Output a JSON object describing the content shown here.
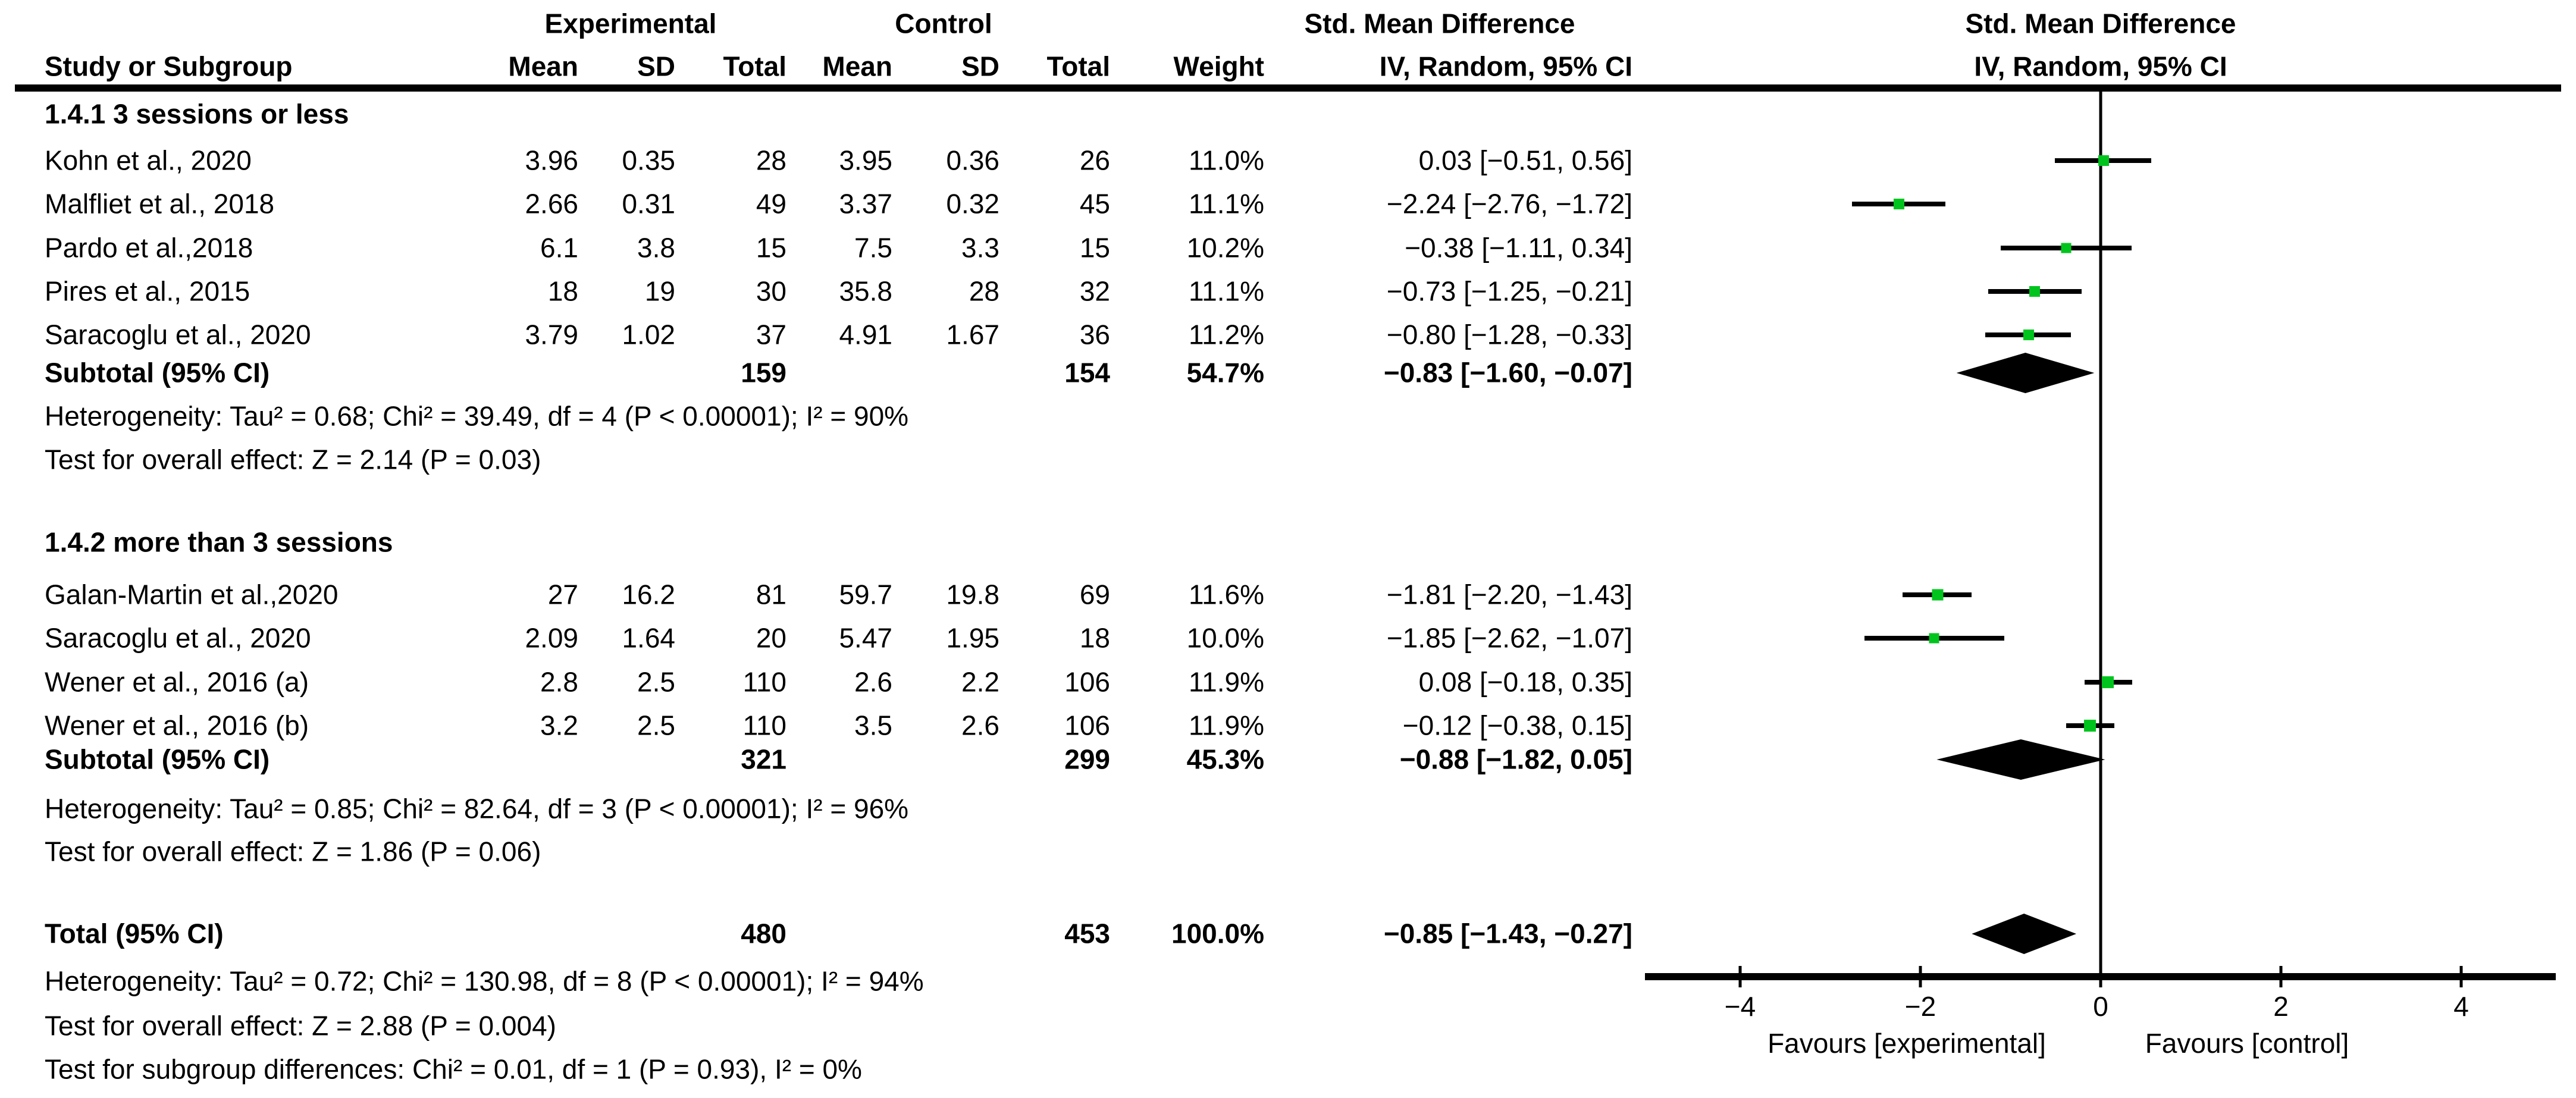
{
  "table": {
    "header": {
      "group_experimental": "Experimental",
      "group_control": "Control",
      "smd_column_title": "Std. Mean Difference",
      "plot_title": "Std. Mean Difference",
      "col_study": "Study or Subgroup",
      "col_mean": "Mean",
      "col_sd": "SD",
      "col_total": "Total",
      "col_weight": "Weight",
      "col_ci": "IV, Random, 95% CI",
      "plot_subtitle": "IV, Random, 95% CI"
    },
    "subgroups": [
      {
        "title": "1.4.1 3 sessions or less",
        "studies": [
          {
            "name": "Kohn et al., 2020",
            "mean_e": "3.96",
            "sd_e": "0.35",
            "total_e": "28",
            "mean_c": "3.95",
            "sd_c": "0.36",
            "total_c": "26",
            "weight": "11.0%",
            "ci": "0.03 [−0.51, 0.56]",
            "est": 0.03,
            "lo": -0.51,
            "hi": 0.56,
            "weight_pct": 11.0
          },
          {
            "name": "Malfliet et al., 2018",
            "mean_e": "2.66",
            "sd_e": "0.31",
            "total_e": "49",
            "mean_c": "3.37",
            "sd_c": "0.32",
            "total_c": "45",
            "weight": "11.1%",
            "ci": "−2.24 [−2.76, −1.72]",
            "est": -2.24,
            "lo": -2.76,
            "hi": -1.72,
            "weight_pct": 11.1
          },
          {
            "name": "Pardo et al.,2018",
            "mean_e": "6.1",
            "sd_e": "3.8",
            "total_e": "15",
            "mean_c": "7.5",
            "sd_c": "3.3",
            "total_c": "15",
            "weight": "10.2%",
            "ci": "−0.38 [−1.11, 0.34]",
            "est": -0.38,
            "lo": -1.11,
            "hi": 0.34,
            "weight_pct": 10.2
          },
          {
            "name": "Pires et al., 2015",
            "mean_e": "18",
            "sd_e": "19",
            "total_e": "30",
            "mean_c": "35.8",
            "sd_c": "28",
            "total_c": "32",
            "weight": "11.1%",
            "ci": "−0.73 [−1.25, −0.21]",
            "est": -0.73,
            "lo": -1.25,
            "hi": -0.21,
            "weight_pct": 11.1
          },
          {
            "name": "Saracoglu et al., 2020",
            "mean_e": "3.79",
            "sd_e": "1.02",
            "total_e": "37",
            "mean_c": "4.91",
            "sd_c": "1.67",
            "total_c": "36",
            "weight": "11.2%",
            "ci": "−0.80 [−1.28, −0.33]",
            "est": -0.8,
            "lo": -1.28,
            "hi": -0.33,
            "weight_pct": 11.2
          }
        ],
        "subtotal": {
          "label": "Subtotal (95% CI)",
          "total_e": "159",
          "total_c": "154",
          "weight": "54.7%",
          "ci": "−0.83 [−1.60, −0.07]",
          "est": -0.83,
          "lo": -1.6,
          "hi": -0.07
        },
        "heterogeneity": "Heterogeneity: Tau² = 0.68; Chi² = 39.49, df = 4 (P < 0.00001); I² = 90%",
        "overall_test": "Test for overall effect: Z = 2.14 (P = 0.03)"
      },
      {
        "title": "1.4.2 more than 3 sessions",
        "studies": [
          {
            "name": "Galan-Martin et al.,2020",
            "mean_e": "27",
            "sd_e": "16.2",
            "total_e": "81",
            "mean_c": "59.7",
            "sd_c": "19.8",
            "total_c": "69",
            "weight": "11.6%",
            "ci": "−1.81 [−2.20, −1.43]",
            "est": -1.81,
            "lo": -2.2,
            "hi": -1.43,
            "weight_pct": 11.6
          },
          {
            "name": "Saracoglu et al., 2020",
            "mean_e": "2.09",
            "sd_e": "1.64",
            "total_e": "20",
            "mean_c": "5.47",
            "sd_c": "1.95",
            "total_c": "18",
            "weight": "10.0%",
            "ci": "−1.85 [−2.62, −1.07]",
            "est": -1.85,
            "lo": -2.62,
            "hi": -1.07,
            "weight_pct": 10.0
          },
          {
            "name": "Wener et al., 2016 (a)",
            "mean_e": "2.8",
            "sd_e": "2.5",
            "total_e": "110",
            "mean_c": "2.6",
            "sd_c": "2.2",
            "total_c": "106",
            "weight": "11.9%",
            "ci": "0.08 [−0.18, 0.35]",
            "est": 0.08,
            "lo": -0.18,
            "hi": 0.35,
            "weight_pct": 11.9
          },
          {
            "name": "Wener et al., 2016 (b)",
            "mean_e": "3.2",
            "sd_e": "2.5",
            "total_e": "110",
            "mean_c": "3.5",
            "sd_c": "2.6",
            "total_c": "106",
            "weight": "11.9%",
            "ci": "−0.12 [−0.38, 0.15]",
            "est": -0.12,
            "lo": -0.38,
            "hi": 0.15,
            "weight_pct": 11.9
          }
        ],
        "subtotal": {
          "label": "Subtotal (95% CI)",
          "total_e": "321",
          "total_c": "299",
          "weight": "45.3%",
          "ci": "−0.88 [−1.82, 0.05]",
          "est": -0.88,
          "lo": -1.82,
          "hi": 0.05
        },
        "heterogeneity": "Heterogeneity: Tau² = 0.85; Chi² = 82.64, df = 3 (P < 0.00001); I² = 96%",
        "overall_test": "Test for overall effect: Z = 1.86 (P = 0.06)"
      }
    ],
    "total_row": {
      "label": "Total (95% CI)",
      "total_e": "480",
      "total_c": "453",
      "weight": "100.0%",
      "ci": "−0.85 [−1.43, −0.27]",
      "est": -0.85,
      "lo": -1.43,
      "hi": -0.27
    },
    "footer": {
      "heterogeneity": "Heterogeneity: Tau² = 0.72; Chi² = 130.98, df = 8 (P < 0.00001); I² = 94%",
      "overall_test": "Test for overall effect: Z = 2.88 (P = 0.004)",
      "subgroup_test": "Test for subgroup differences: Chi² = 0.01, df = 1 (P = 0.93), I² = 0%"
    }
  },
  "plot": {
    "ticks": [
      -4,
      -2,
      0,
      2,
      4
    ],
    "tick_labels": [
      "−4",
      "−2",
      "0",
      "2",
      "4"
    ],
    "favours_left": "Favours [experimental]",
    "favours_right": "Favours [control]",
    "marker_color": "#00c41e",
    "line_color": "#000000"
  },
  "chart_data": {
    "type": "scatter",
    "title": "Std. Mean Difference  IV, Random, 95% CI",
    "xlabel": "Favours [experimental] (left) / Favours [control] (right)",
    "xlim": [
      -5,
      5
    ],
    "xticks": [
      -4,
      -2,
      0,
      2,
      4
    ],
    "categories": [
      "Kohn et al., 2020",
      "Malfliet et al., 2018",
      "Pardo et al.,2018",
      "Pires et al., 2015",
      "Saracoglu et al., 2020",
      "Galan-Martin et al.,2020",
      "Saracoglu et al., 2020",
      "Wener et al., 2016 (a)",
      "Wener et al., 2016 (b)"
    ],
    "series": [
      {
        "name": "SMD estimate",
        "values": [
          0.03,
          -2.24,
          -0.38,
          -0.73,
          -0.8,
          -1.81,
          -1.85,
          0.08,
          -0.12
        ]
      },
      {
        "name": "CI lower",
        "values": [
          -0.51,
          -2.76,
          -1.11,
          -1.25,
          -1.28,
          -2.2,
          -2.62,
          -0.18,
          -0.38
        ]
      },
      {
        "name": "CI upper",
        "values": [
          0.56,
          -1.72,
          0.34,
          -0.21,
          -0.33,
          -1.43,
          -1.07,
          0.35,
          0.15
        ]
      },
      {
        "name": "Weight %",
        "values": [
          11.0,
          11.1,
          10.2,
          11.1,
          11.2,
          11.6,
          10.0,
          11.9,
          11.9
        ]
      }
    ],
    "diamonds": [
      {
        "label": "Subtotal 1.4.1",
        "est": -0.83,
        "lo": -1.6,
        "hi": -0.07
      },
      {
        "label": "Subtotal 1.4.2",
        "est": -0.88,
        "lo": -1.82,
        "hi": 0.05
      },
      {
        "label": "Total",
        "est": -0.85,
        "lo": -1.43,
        "hi": -0.27
      }
    ],
    "legend_position": "none",
    "grid": false
  }
}
